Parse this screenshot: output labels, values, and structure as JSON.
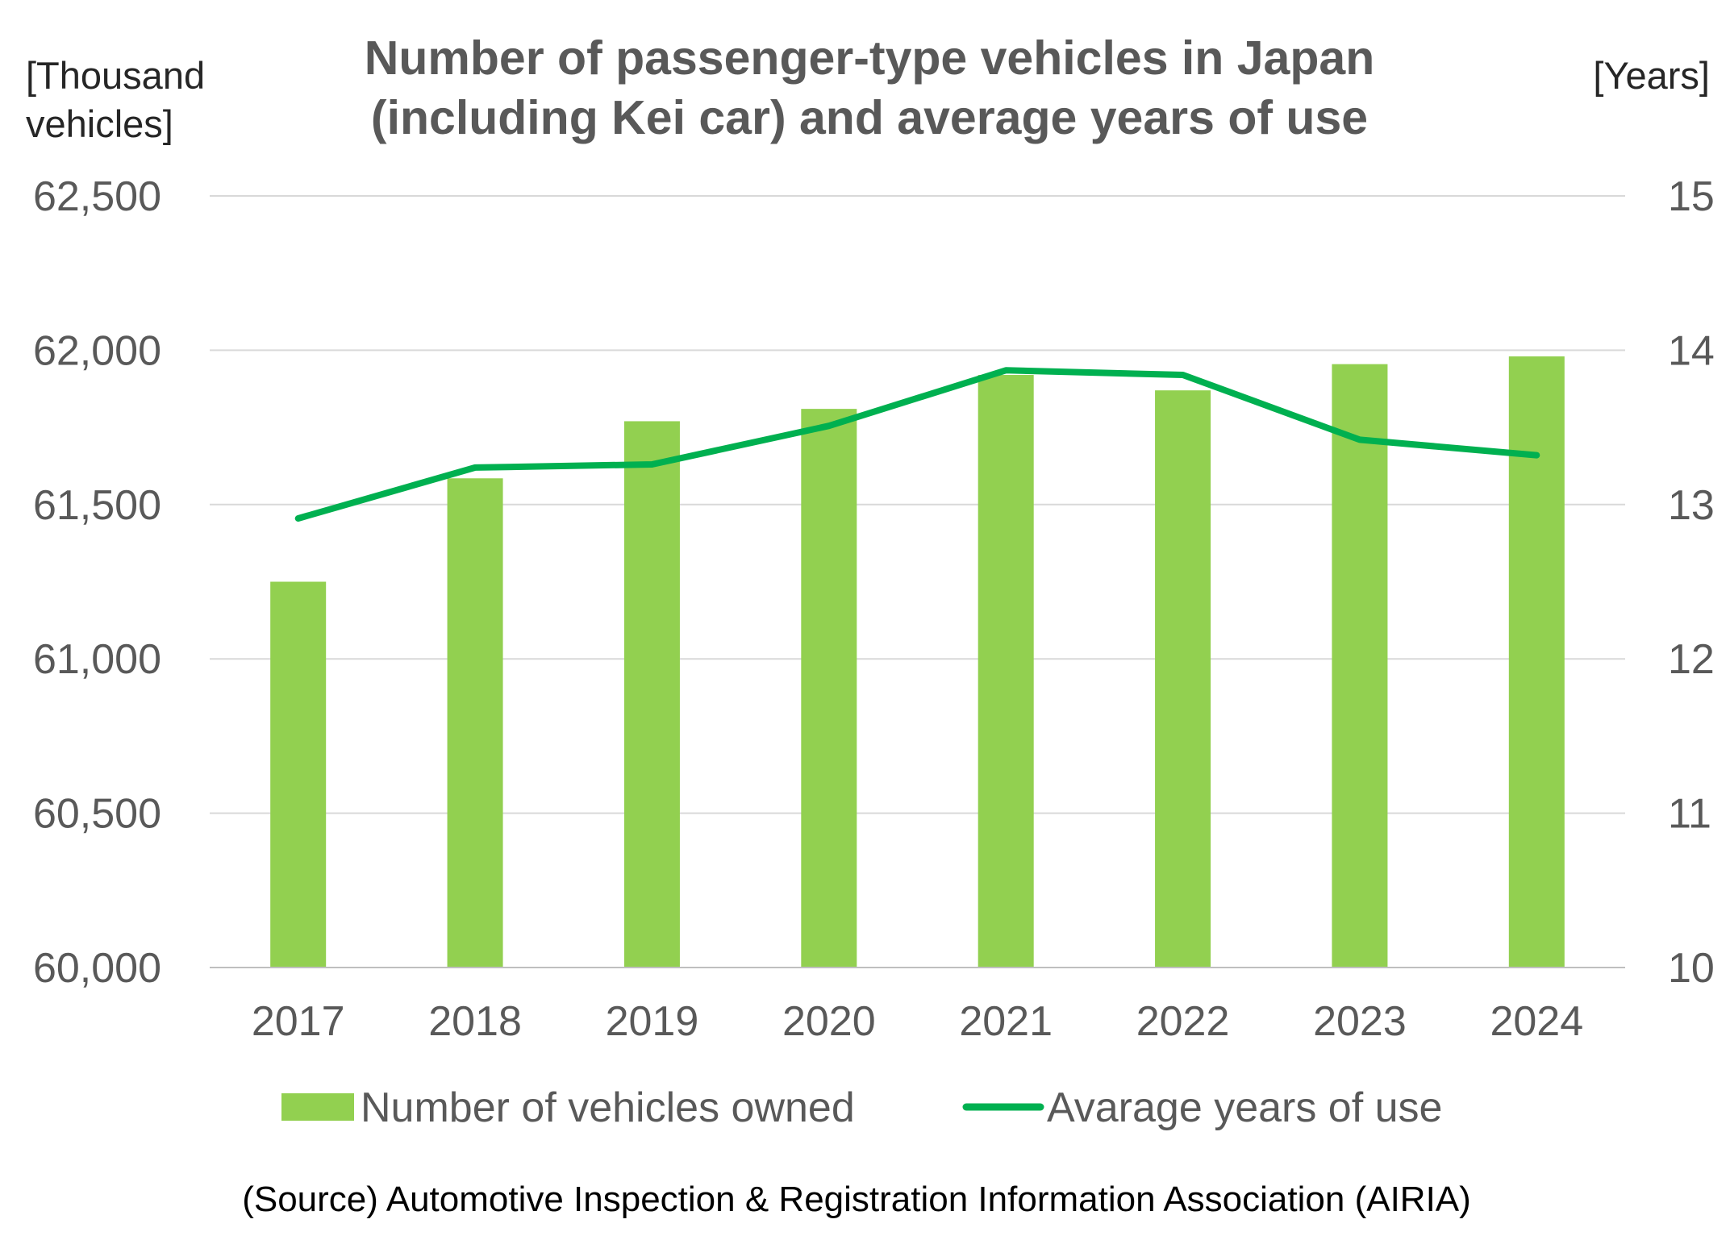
{
  "chart_data": {
    "type": "bar",
    "title": "Number of passenger-type vehicles in Japan (including Kei car) and average years of use",
    "title_lines": [
      "Number of passenger-type vehicles in Japan",
      "(including Kei car) and average years of use"
    ],
    "y_left_unit_lines": [
      "[Thousand",
      "vehicles]"
    ],
    "y_right_unit": "[Years]",
    "categories": [
      "2017",
      "2018",
      "2019",
      "2020",
      "2021",
      "2022",
      "2023",
      "2024"
    ],
    "y_left_ticks": [
      "60,000",
      "60,500",
      "61,000",
      "61,500",
      "62,000",
      "62,500"
    ],
    "y_right_ticks": [
      "10",
      "11",
      "12",
      "13",
      "14",
      "15"
    ],
    "ylim_left": [
      60000,
      62500
    ],
    "ylim_right": [
      10,
      15
    ],
    "grid": true,
    "legend_position": "bottom",
    "series": [
      {
        "name": "Number of vehicles owned",
        "type": "bar",
        "axis": "left",
        "color": "#92d050",
        "values": [
          61250,
          61585,
          61770,
          61810,
          61920,
          61870,
          61955,
          61980
        ]
      },
      {
        "name": "Avarage years of use",
        "type": "line",
        "axis": "right",
        "color": "#00b050",
        "values": [
          12.91,
          13.24,
          13.26,
          13.51,
          13.87,
          13.84,
          13.42,
          13.32
        ]
      }
    ],
    "source": "(Source) Automotive Inspection & Registration Information Association (AIRIA)"
  }
}
